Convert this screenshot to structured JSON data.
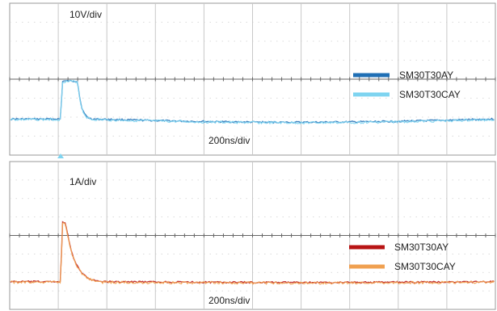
{
  "chart_data": [
    {
      "type": "line",
      "scale_label": "10V/div",
      "time_label": "200ns/div",
      "x_divisions": 10,
      "y_divisions": 8,
      "trace_level_div": 6.1,
      "pulse": {
        "start_div": 1.05,
        "peak_div": 4.1,
        "peak_x_div": 1.4,
        "decay_to_div": 1.7
      },
      "series": [
        {
          "name": "SM30T30AY",
          "color": "#1f6fb5"
        },
        {
          "name": "SM30T30CAY",
          "color": "#7fd4f0"
        }
      ],
      "legend_position": "right",
      "grid": true
    },
    {
      "type": "line",
      "scale_label": "1A/div",
      "time_label": "200ns/div",
      "x_divisions": 10,
      "y_divisions": 8,
      "trace_level_div": 6.5,
      "pulse": {
        "start_div": 1.05,
        "peak_div": 3.3,
        "peak_x_div": 1.15,
        "decay_to_div": 1.9
      },
      "series": [
        {
          "name": "SM30T30AY",
          "color": "#b81414"
        },
        {
          "name": "SM30T30CAY",
          "color": "#f0a050"
        }
      ],
      "legend_position": "right",
      "grid": true
    }
  ]
}
